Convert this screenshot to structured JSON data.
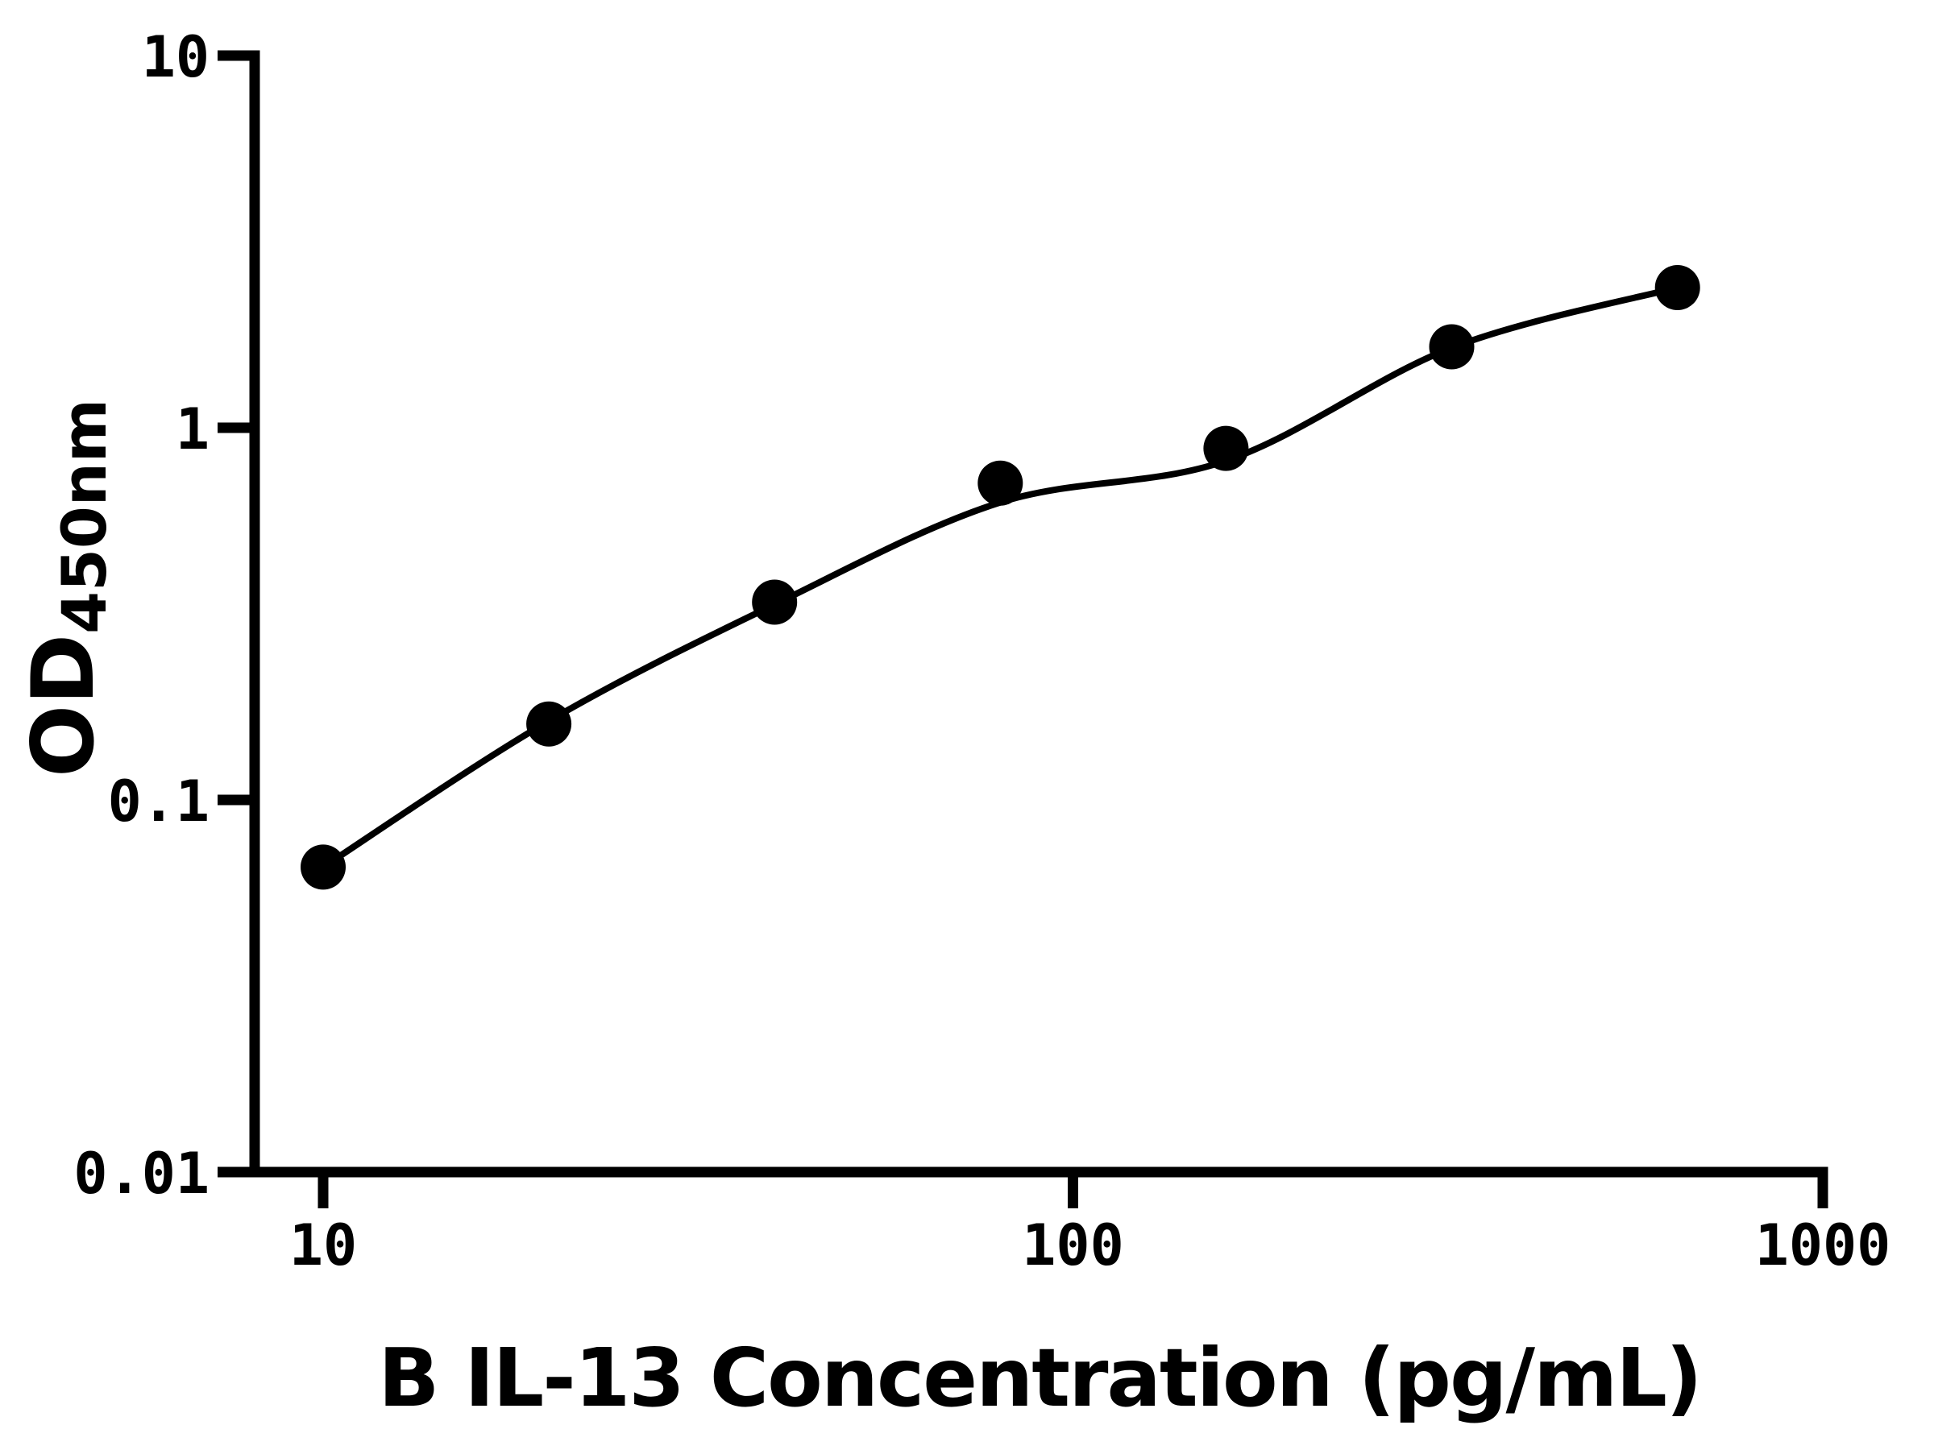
{
  "chart_data": {
    "type": "scatter",
    "title": "",
    "xlabel": "B IL-13 Concentration (pg/mL)",
    "ylabel_main": "OD",
    "ylabel_sub": "450nm",
    "x_scale": "log",
    "y_scale": "log",
    "xlim": [
      10,
      1000
    ],
    "ylim": [
      0.01,
      10
    ],
    "grid": "off",
    "legend": "none",
    "x_ticks": [
      {
        "v": 10,
        "label": "10"
      },
      {
        "v": 100,
        "label": "100"
      },
      {
        "v": 1000,
        "label": "1000"
      }
    ],
    "y_ticks": [
      {
        "v": 10,
        "label": "10"
      },
      {
        "v": 1,
        "label": "1"
      },
      {
        "v": 0.1,
        "label": "0.1"
      },
      {
        "v": 0.01,
        "label": "0.01"
      }
    ],
    "series": [
      {
        "name": "standard-curve-points",
        "marker": "circle",
        "color": "#000000",
        "points": [
          {
            "x": 10,
            "od": 0.066
          },
          {
            "x": 20,
            "od": 0.16
          },
          {
            "x": 40,
            "od": 0.34
          },
          {
            "x": 80,
            "od": 0.71
          },
          {
            "x": 160,
            "od": 0.88
          },
          {
            "x": 320,
            "od": 1.65
          },
          {
            "x": 640,
            "od": 2.38
          }
        ]
      }
    ],
    "fit_curve": {
      "name": "fitted-standard-curve",
      "color": "#000000",
      "anchors": [
        {
          "x": 10,
          "od": 0.066
        },
        {
          "x": 20,
          "od": 0.163
        },
        {
          "x": 40,
          "od": 0.335
        },
        {
          "x": 80,
          "od": 0.63
        },
        {
          "x": 160,
          "od": 0.815
        },
        {
          "x": 320,
          "od": 1.64
        },
        {
          "x": 640,
          "od": 2.38
        }
      ]
    },
    "colors": {
      "foreground": "#000000",
      "background": "#ffffff"
    }
  }
}
